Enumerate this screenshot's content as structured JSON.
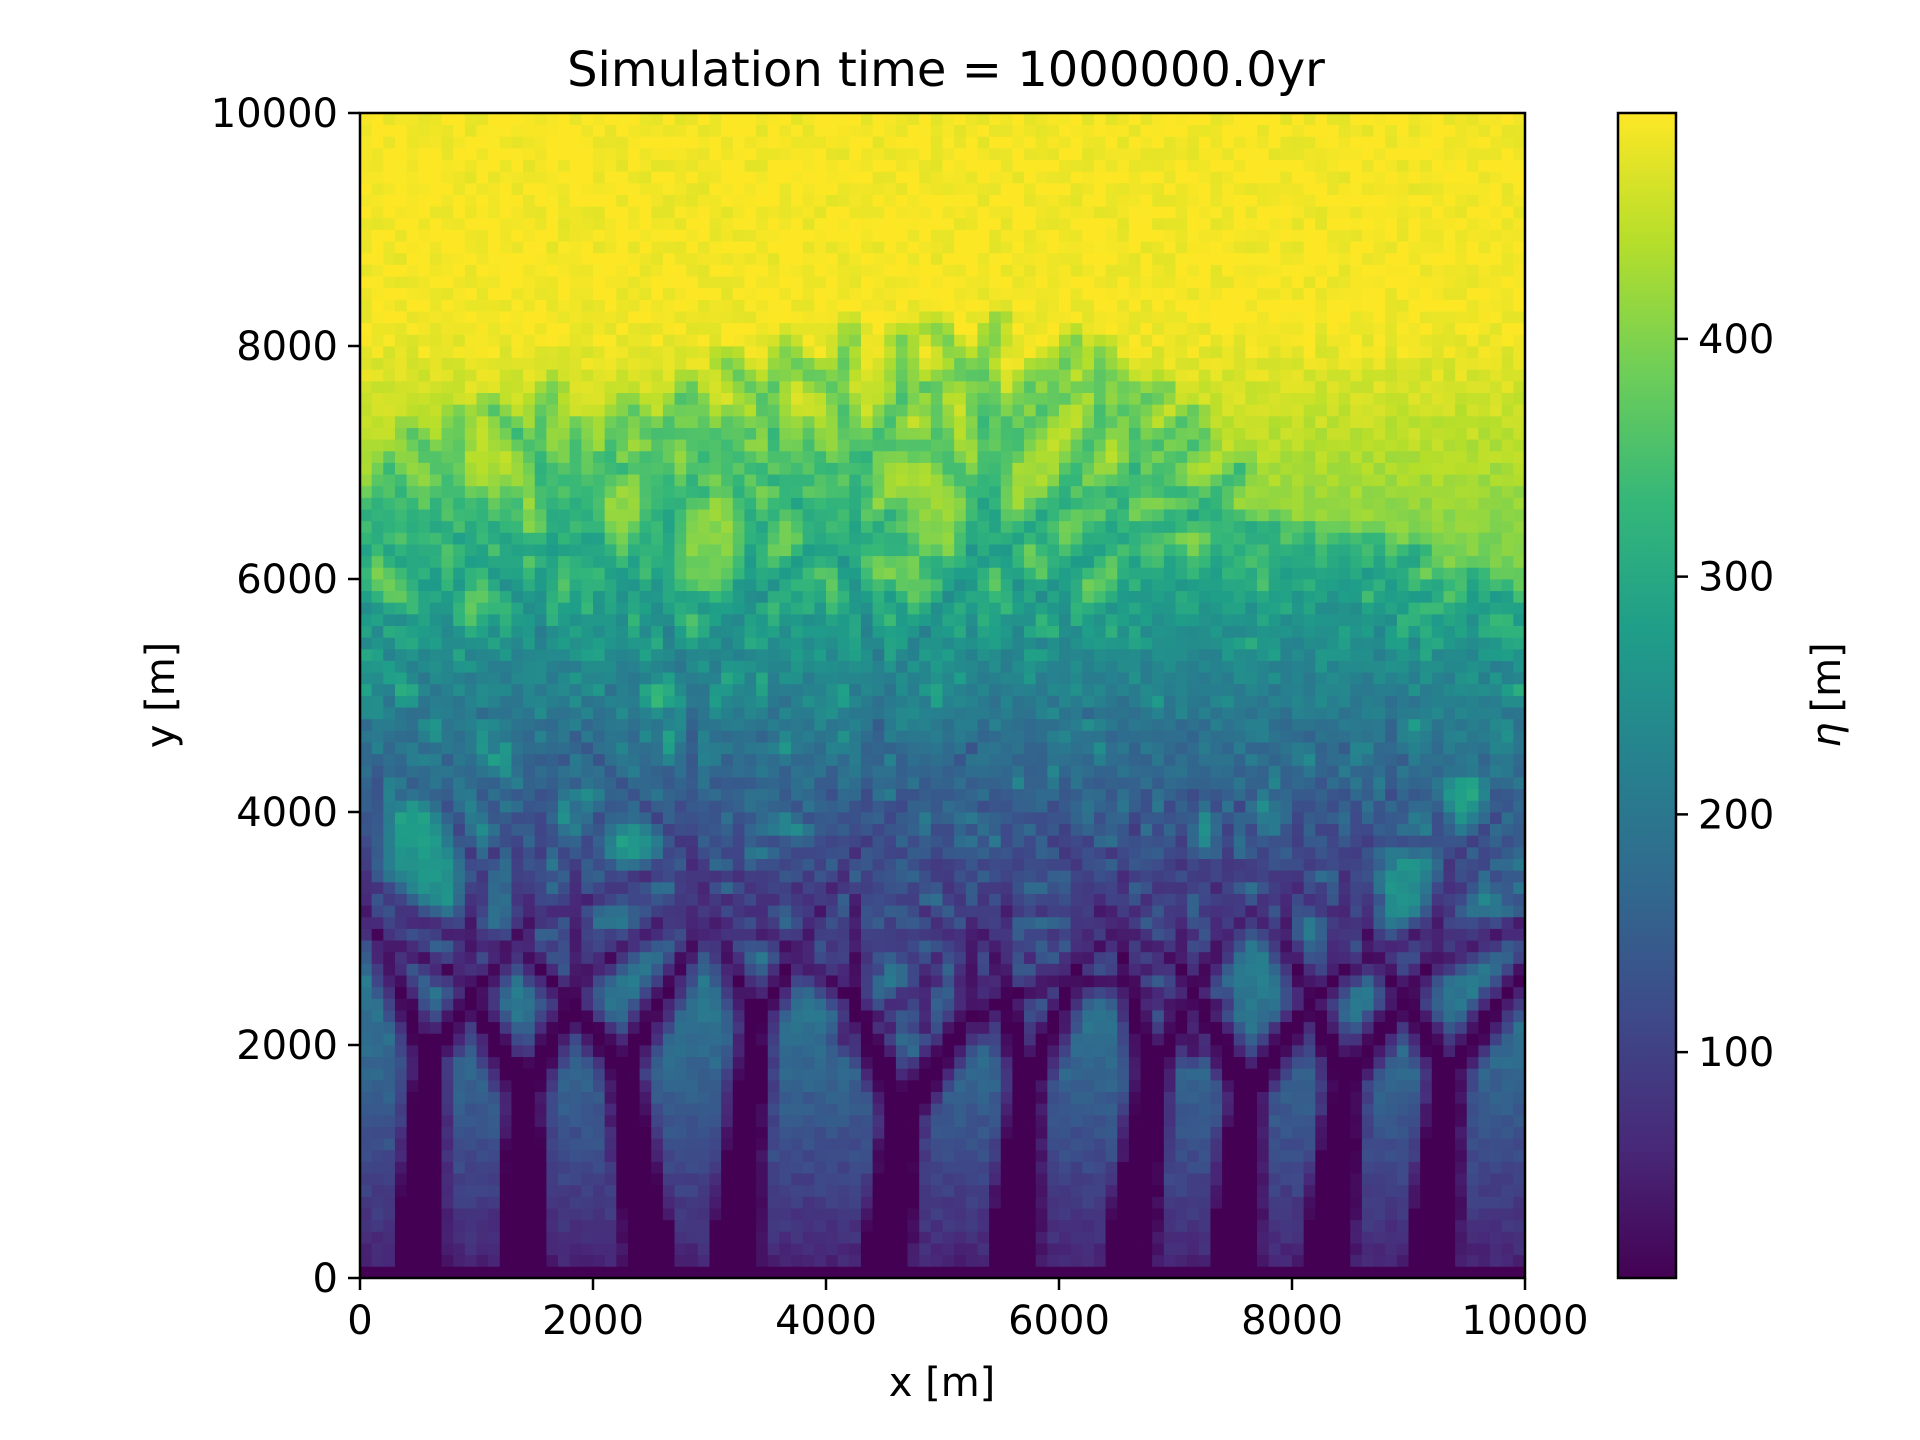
{
  "chart_data": {
    "type": "heatmap",
    "title": "Simulation time = 1000000.0yr",
    "xlabel": "x [m]",
    "ylabel": "y [m]",
    "xlim": [
      0,
      10000
    ],
    "ylim": [
      0,
      10000
    ],
    "x_ticks": [
      0,
      2000,
      4000,
      6000,
      8000,
      10000
    ],
    "y_ticks": [
      0,
      2000,
      4000,
      6000,
      8000,
      10000
    ],
    "x_tick_labels": [
      "0",
      "2000",
      "4000",
      "6000",
      "8000",
      "10000"
    ],
    "y_tick_labels": [
      "0",
      "2000",
      "4000",
      "6000",
      "8000",
      "10000"
    ],
    "grid": false,
    "grid_size": [
      100,
      100
    ],
    "colormap": "viridis",
    "colorbar": {
      "label": "η [m]",
      "label_symbol": "η",
      "label_unit": "[m]",
      "range": [
        5,
        495
      ],
      "ticks": [
        100,
        200,
        300,
        400
      ],
      "tick_labels": [
        "100",
        "200",
        "300",
        "400"
      ]
    },
    "field_description": "Elevation η of a dendritic channel network; low (~0-150 m) near y=0 outlets, rising to ~490 m plateau above y≈8000 m",
    "viridis_stops": [
      "#440154",
      "#482878",
      "#3e4989",
      "#31688e",
      "#26828e",
      "#1f9e89",
      "#35b779",
      "#6ece58",
      "#b5de2b",
      "#fde725"
    ]
  }
}
